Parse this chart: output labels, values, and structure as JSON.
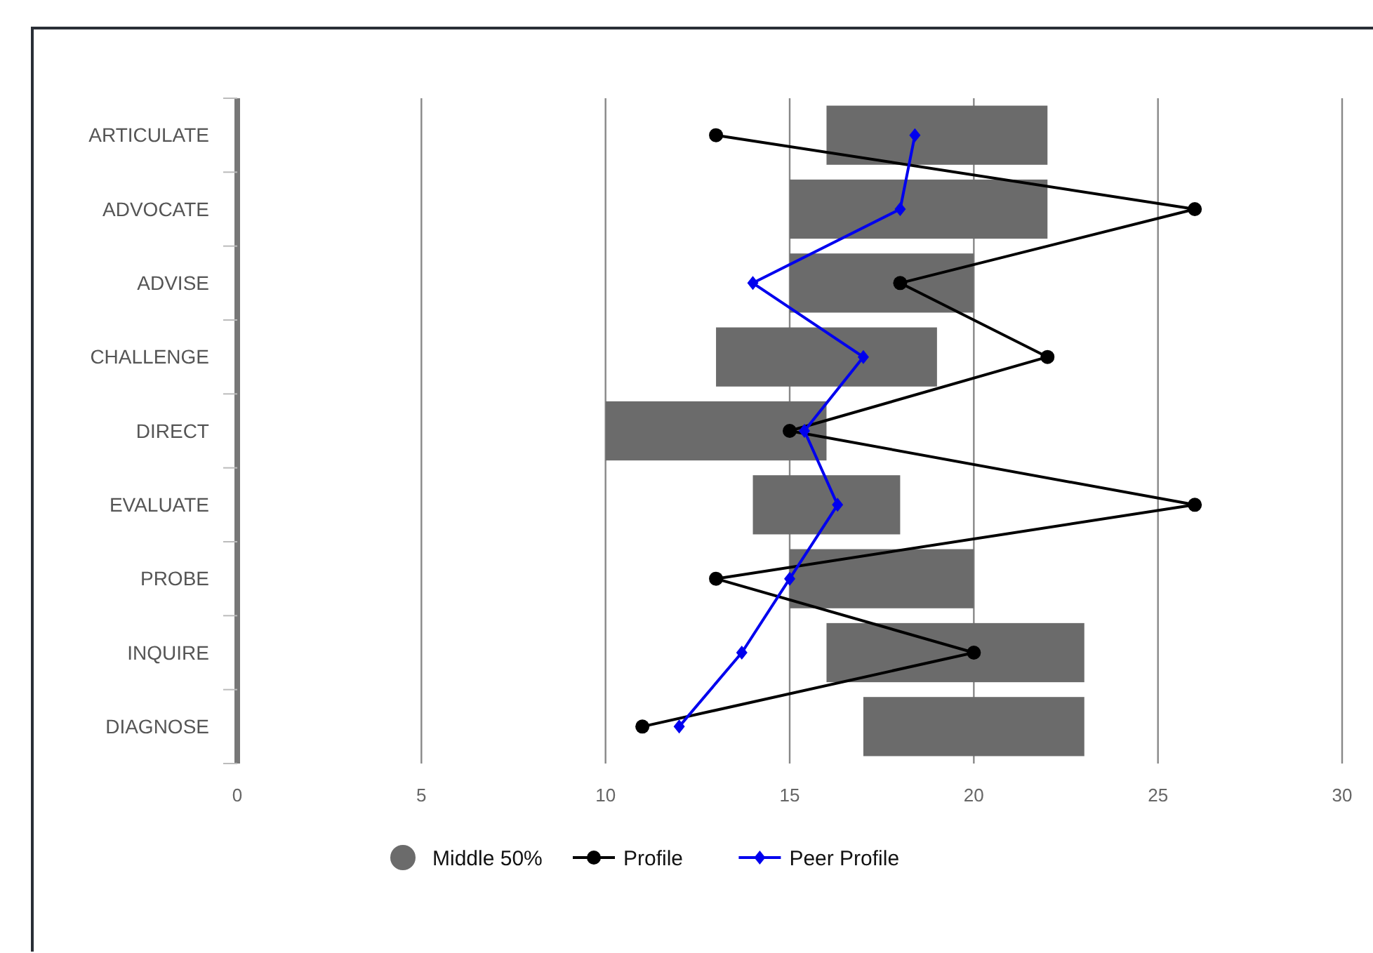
{
  "chart_data": {
    "type": "bar",
    "orientation": "horizontal",
    "categories": [
      "ARTICULATE",
      "ADVOCATE",
      "ADVISE",
      "CHALLENGE",
      "DIRECT",
      "EVALUATE",
      "PROBE",
      "INQUIRE",
      "DIAGNOSE"
    ],
    "series": [
      {
        "name": "Middle 50%",
        "color": "#6b6b6b",
        "base": [
          16,
          15,
          15,
          13,
          10,
          14,
          15,
          16,
          17
        ],
        "values": [
          6,
          7,
          5,
          6,
          6,
          4,
          5,
          7,
          6
        ]
      },
      {
        "name": "Profile",
        "type": "line",
        "color": "#000000",
        "marker": "circle",
        "values": [
          13,
          26,
          18,
          22,
          15,
          26,
          13,
          20,
          11
        ]
      },
      {
        "name": "Peer Profile",
        "type": "line",
        "color": "#0000ee",
        "marker": "diamond",
        "values": [
          18.4,
          18,
          14,
          17,
          15.4,
          16.3,
          15,
          13.7,
          12
        ]
      }
    ],
    "xlim": [
      0,
      30
    ],
    "xticks": [
      0,
      5,
      10,
      15,
      20,
      25,
      30
    ],
    "grid": "x",
    "legend": "bottom"
  }
}
